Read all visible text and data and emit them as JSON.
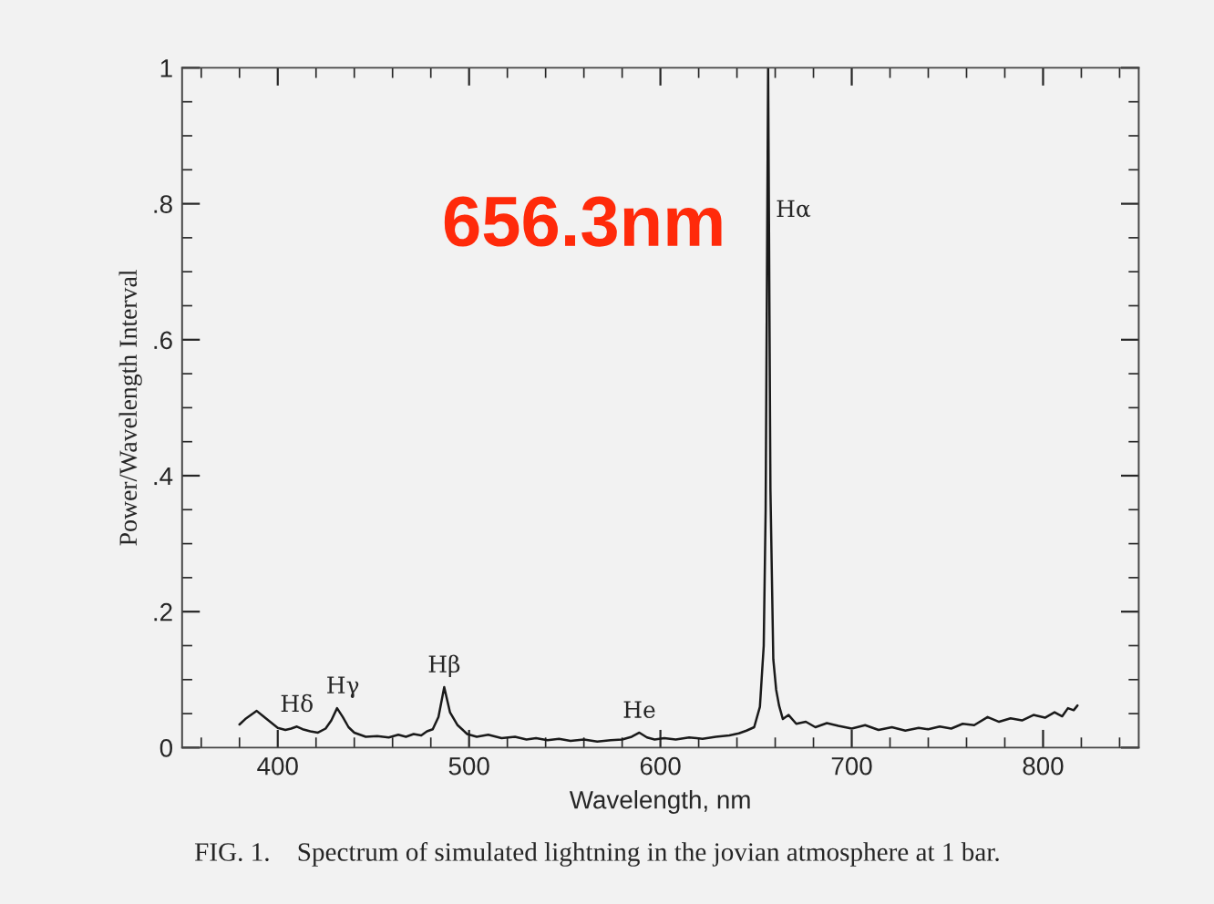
{
  "chart_data": {
    "type": "line",
    "xlabel": "Wavelength, nm",
    "ylabel": "Power/Wavelength Interval",
    "x": [
      380,
      383,
      386,
      389,
      392,
      396,
      400,
      404,
      407,
      410,
      413,
      417,
      421,
      425,
      428,
      431,
      434,
      437,
      440,
      446,
      452,
      458,
      463,
      467,
      471,
      475,
      478,
      481,
      484,
      487,
      490,
      494,
      499,
      504,
      510,
      517,
      524,
      530,
      535,
      541,
      547,
      553,
      560,
      567,
      574,
      580,
      585,
      589,
      593,
      597,
      602,
      608,
      615,
      622,
      629,
      636,
      641,
      645,
      649,
      652,
      654,
      655,
      656.3,
      657.5,
      659,
      660.5,
      662,
      664,
      667,
      671,
      676,
      681,
      687,
      693,
      700,
      707,
      714,
      721,
      728,
      735,
      740,
      746,
      752,
      758,
      764,
      771,
      777,
      783,
      789,
      795,
      801,
      806,
      810,
      813,
      816,
      818
    ],
    "series": [
      {
        "color": "#1a1a1a",
        "values": [
          0.034,
          0.042,
          0.048,
          0.054,
          0.047,
          0.038,
          0.029,
          0.026,
          0.028,
          0.031,
          0.027,
          0.024,
          0.022,
          0.028,
          0.04,
          0.058,
          0.045,
          0.03,
          0.022,
          0.016,
          0.017,
          0.015,
          0.019,
          0.016,
          0.02,
          0.018,
          0.024,
          0.027,
          0.045,
          0.089,
          0.052,
          0.033,
          0.02,
          0.016,
          0.019,
          0.014,
          0.016,
          0.012,
          0.014,
          0.011,
          0.013,
          0.01,
          0.012,
          0.009,
          0.011,
          0.012,
          0.016,
          0.022,
          0.015,
          0.012,
          0.014,
          0.012,
          0.015,
          0.013,
          0.016,
          0.018,
          0.021,
          0.025,
          0.03,
          0.06,
          0.15,
          0.35,
          1.0,
          0.38,
          0.13,
          0.085,
          0.062,
          0.042,
          0.048,
          0.035,
          0.038,
          0.03,
          0.036,
          0.032,
          0.028,
          0.033,
          0.026,
          0.03,
          0.025,
          0.029,
          0.027,
          0.031,
          0.028,
          0.035,
          0.033,
          0.045,
          0.038,
          0.043,
          0.04,
          0.048,
          0.044,
          0.052,
          0.046,
          0.058,
          0.055,
          0.062
        ]
      }
    ],
    "xlim": [
      350,
      850
    ],
    "xticks": [
      400,
      500,
      600,
      700,
      800
    ],
    "ylim": [
      0,
      1
    ],
    "yticks": [
      {
        "value": 0,
        "label": "0"
      },
      {
        "value": 0.2,
        "label": ".2"
      },
      {
        "value": 0.4,
        "label": ".4"
      },
      {
        "value": 0.6,
        "label": ".6"
      },
      {
        "value": 0.8,
        "label": ".8"
      },
      {
        "value": 1,
        "label": "1"
      }
    ],
    "grid": false,
    "legend": false,
    "marker": "none",
    "line_style": "solid",
    "annotations": [
      {
        "text": "Hδ",
        "x": 410,
        "y": 0.031
      },
      {
        "text": "Hγ",
        "x": 434,
        "y": 0.058
      },
      {
        "text": "Hβ",
        "x": 487,
        "y": 0.089
      },
      {
        "text": "He",
        "x": 589,
        "y": 0.022
      },
      {
        "text": "Hα",
        "x": 656.3,
        "y": 0.79
      },
      "656.3nm",
      "FIG. 1.    Spectrum of simulated lightning in the jovian atmosphere at 1 bar."
    ]
  }
}
